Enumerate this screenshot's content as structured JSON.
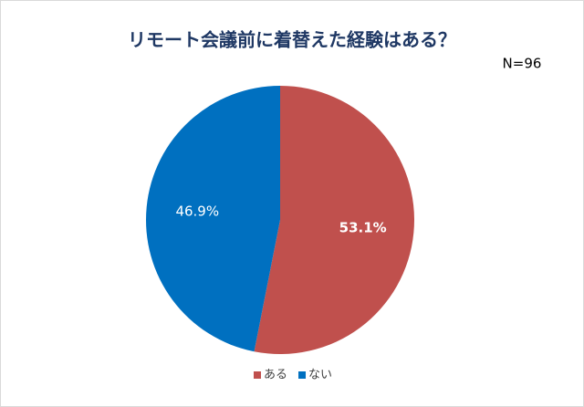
{
  "chart_data": {
    "type": "pie",
    "title": "リモート会議前に着替えた経験はある？",
    "subtitle": "N=96",
    "categories": [
      "ある",
      "ない"
    ],
    "values": [
      53.1,
      46.9
    ],
    "value_labels": [
      "53.1%",
      "46.9%"
    ],
    "colors": [
      "#c0504d",
      "#0070c0"
    ],
    "legend": "bottom"
  }
}
